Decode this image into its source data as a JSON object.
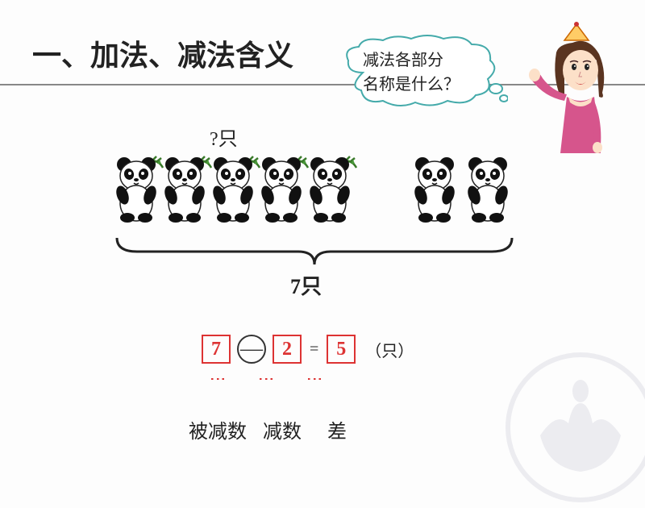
{
  "title": "一、加法、减法含义",
  "speech": {
    "line1": "减法各部分",
    "line2": "名称是什么？"
  },
  "question_label": "?只",
  "panda_group_left": {
    "count": 5,
    "has_bamboo": true
  },
  "panda_group_right": {
    "count": 2,
    "has_bamboo": false
  },
  "total_label": "7只",
  "equation": {
    "minuend": "7",
    "operator": "—",
    "subtrahend": "2",
    "equals": "=",
    "difference": "5",
    "unit": "（只）"
  },
  "term_labels": {
    "minuend": "被减数",
    "subtrahend": "减数",
    "difference": "差"
  },
  "colors": {
    "accent": "#d33",
    "text": "#222",
    "box_border": "#d33",
    "circle_border": "#333"
  }
}
